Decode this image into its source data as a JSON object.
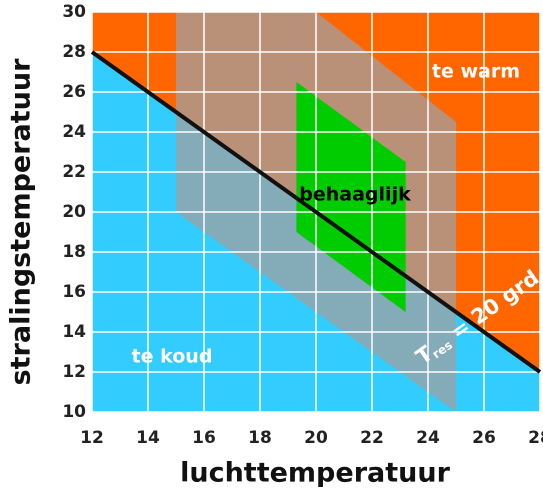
{
  "chart_data": {
    "type": "region",
    "x_label": "luchttemperatuur",
    "y_label": "stralingstemperatuur",
    "xlim": [
      12,
      28
    ],
    "ylim": [
      10,
      30
    ],
    "xticks": [
      12,
      14,
      16,
      18,
      20,
      22,
      24,
      26,
      28
    ],
    "yticks": [
      10,
      12,
      14,
      16,
      18,
      20,
      22,
      24,
      26,
      28,
      30
    ],
    "grid": true,
    "grid_color": "#ffffff",
    "regions": [
      {
        "x": [
          12,
          12,
          28,
          28
        ],
        "y": [
          28,
          30,
          30,
          12
        ],
        "color": "#ff6600",
        "opacity": 1
      },
      {
        "x": [
          12,
          12,
          28,
          28
        ],
        "y": [
          10,
          28,
          12,
          10
        ],
        "color": "#33ccff",
        "opacity": 1
      },
      {
        "x": [
          15,
          20,
          25,
          25,
          15
        ],
        "y": [
          30,
          30,
          24.5,
          10,
          20
        ],
        "color": "#a0a0a0",
        "opacity": 0.75
      },
      {
        "x": [
          19.3,
          23.2,
          23.2,
          19.3
        ],
        "y": [
          26.5,
          22.5,
          15,
          19
        ],
        "color": "#00cc00",
        "opacity": 1
      }
    ],
    "line": {
      "x": [
        12,
        28
      ],
      "y": [
        28,
        12
      ],
      "color": "#111111"
    },
    "line_label": {
      "main": "T",
      "sub": "res",
      "rest": " = 20 grd"
    },
    "annotations": [
      {
        "text": "te warm",
        "color": "#ffffff"
      },
      {
        "text": "te koud",
        "color": "#ffffff"
      },
      {
        "text": "behaaglijk",
        "color": "#000000"
      }
    ]
  }
}
